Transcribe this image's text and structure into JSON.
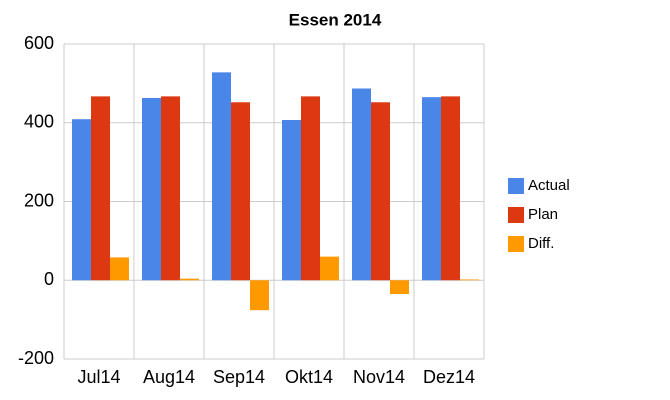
{
  "chart_data": {
    "type": "bar",
    "title": "Essen 2014",
    "categories": [
      "Jul14",
      "Aug14",
      "Sep14",
      "Okt14",
      "Nov14",
      "Dez14"
    ],
    "series": [
      {
        "name": "Actual",
        "color": "#4a86e8",
        "values": [
          409,
          463,
          528,
          407,
          487,
          465
        ]
      },
      {
        "name": "Plan",
        "color": "#dc3912",
        "values": [
          467,
          467,
          452,
          467,
          452,
          467
        ]
      },
      {
        "name": "Diff.",
        "color": "#ff9900",
        "values": [
          58,
          4,
          -76,
          60,
          -35,
          2
        ]
      }
    ],
    "ylim": [
      -200,
      600
    ],
    "yticks": [
      -200,
      0,
      200,
      400,
      600
    ],
    "grid": true,
    "legend": "right"
  }
}
